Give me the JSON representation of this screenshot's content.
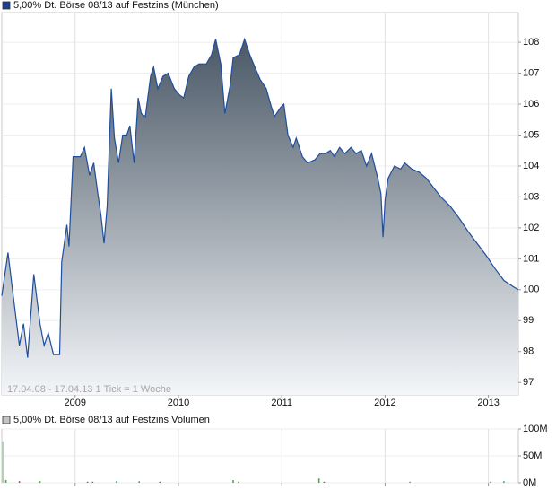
{
  "chart_data": [
    {
      "type": "area",
      "annotation": "17.04.08 - 17.04.13   1 Tick = 1 Woche",
      "xlim": [
        2008.29,
        2013.29
      ],
      "xticks": [
        2009,
        2010,
        2011,
        2012,
        2013
      ],
      "ylim": [
        96.6,
        108.96
      ],
      "yticks": [
        97,
        98,
        99,
        100,
        101,
        102,
        103,
        104,
        105,
        106,
        107,
        108
      ],
      "grid": true,
      "series": [
        {
          "name": "5,00% Dt. Börse 08/13 auf Festzins (München)",
          "color": "#1f4e9c",
          "x": [
            2008.29,
            2008.35,
            2008.39,
            2008.46,
            2008.5,
            2008.54,
            2008.6,
            2008.66,
            2008.7,
            2008.74,
            2008.79,
            2008.85,
            2008.87,
            2008.92,
            2008.94,
            2008.98,
            2009.05,
            2009.09,
            2009.14,
            2009.18,
            2009.22,
            2009.25,
            2009.28,
            2009.31,
            2009.35,
            2009.38,
            2009.42,
            2009.46,
            2009.5,
            2009.53,
            2009.57,
            2009.61,
            2009.64,
            2009.68,
            2009.73,
            2009.76,
            2009.8,
            2009.85,
            2009.9,
            2009.96,
            2010.01,
            2010.05,
            2010.1,
            2010.15,
            2010.2,
            2010.27,
            2010.32,
            2010.36,
            2010.41,
            2010.45,
            2010.5,
            2010.53,
            2010.59,
            2010.64,
            2010.69,
            2010.74,
            2010.79,
            2010.85,
            2010.9,
            2010.93,
            2010.99,
            2011.02,
            2011.06,
            2011.11,
            2011.14,
            2011.2,
            2011.25,
            2011.32,
            2011.37,
            2011.42,
            2011.47,
            2011.51,
            2011.56,
            2011.61,
            2011.67,
            2011.72,
            2011.77,
            2011.82,
            2011.87,
            2011.93,
            2011.96,
            2011.98,
            2012.0,
            2012.03,
            2012.09,
            2012.15,
            2012.19,
            2012.26,
            2012.33,
            2012.4,
            2012.47,
            2012.54,
            2012.63,
            2012.72,
            2012.8,
            2012.89,
            2012.98,
            2013.06,
            2013.15,
            2013.24,
            2013.29
          ],
          "values": [
            99.8,
            101.2,
            100.1,
            98.2,
            98.9,
            97.8,
            100.5,
            98.9,
            98.2,
            98.6,
            97.9,
            97.9,
            100.9,
            102.1,
            101.4,
            104.3,
            104.3,
            104.6,
            103.7,
            104.1,
            103.1,
            102.4,
            101.5,
            102.7,
            106.5,
            104.9,
            104.1,
            105.0,
            105.0,
            105.3,
            104.1,
            106.2,
            105.7,
            105.6,
            106.9,
            107.2,
            106.5,
            106.9,
            107.0,
            106.5,
            106.3,
            106.2,
            106.9,
            107.2,
            107.3,
            107.3,
            107.6,
            108.1,
            107.3,
            105.7,
            106.6,
            107.5,
            107.6,
            108.1,
            107.6,
            107.2,
            106.8,
            106.5,
            105.9,
            105.6,
            105.9,
            106.0,
            105.0,
            104.6,
            104.9,
            104.3,
            104.1,
            104.2,
            104.4,
            104.4,
            104.5,
            104.3,
            104.6,
            104.4,
            104.6,
            104.4,
            104.5,
            104.0,
            104.4,
            103.6,
            103.1,
            101.7,
            102.9,
            103.6,
            104.0,
            103.9,
            104.1,
            103.9,
            103.8,
            103.6,
            103.3,
            103.0,
            102.7,
            102.3,
            101.9,
            101.5,
            101.1,
            100.7,
            100.3,
            100.1,
            100.0
          ]
        }
      ]
    },
    {
      "type": "bar",
      "xlim": [
        2008.29,
        2013.29
      ],
      "xticks": [
        2009,
        2010,
        2011,
        2012,
        2013
      ],
      "ylim": [
        0,
        100000000
      ],
      "yticks": [
        {
          "value": 0,
          "label": "0M"
        },
        {
          "value": 50000000,
          "label": "50M"
        },
        {
          "value": 100000000,
          "label": "100M"
        }
      ],
      "grid": true,
      "series": [
        {
          "name": "5,00% Dt. Börse 08/13 auf Festzins Volumen",
          "color": "#c4c4c4",
          "x": [
            2008.3,
            2008.33,
            2008.46,
            2008.66,
            2009.12,
            2009.17,
            2009.4,
            2009.62,
            2009.82,
            2010.53,
            2010.58,
            2011.36,
            2011.41,
            2012.24,
            2013.02,
            2013.15
          ],
          "values": [
            77000000,
            5000000,
            3000000,
            3000000,
            2000000,
            2000000,
            3000000,
            3000000,
            2000000,
            5000000,
            2000000,
            8000000,
            2000000,
            2000000,
            2000000,
            3000000
          ],
          "colors": [
            "#a6d6a6",
            "#33bb33",
            "#dd3333",
            "#33bb33",
            "#dd3333",
            "#dd3333",
            "#33bb33",
            "#33bb33",
            "#dd3333",
            "#33bb33",
            "#33bb33",
            "#33bb33",
            "#dd3333",
            "#33bb33",
            "#33bb33",
            "#33bb33"
          ]
        }
      ]
    }
  ]
}
